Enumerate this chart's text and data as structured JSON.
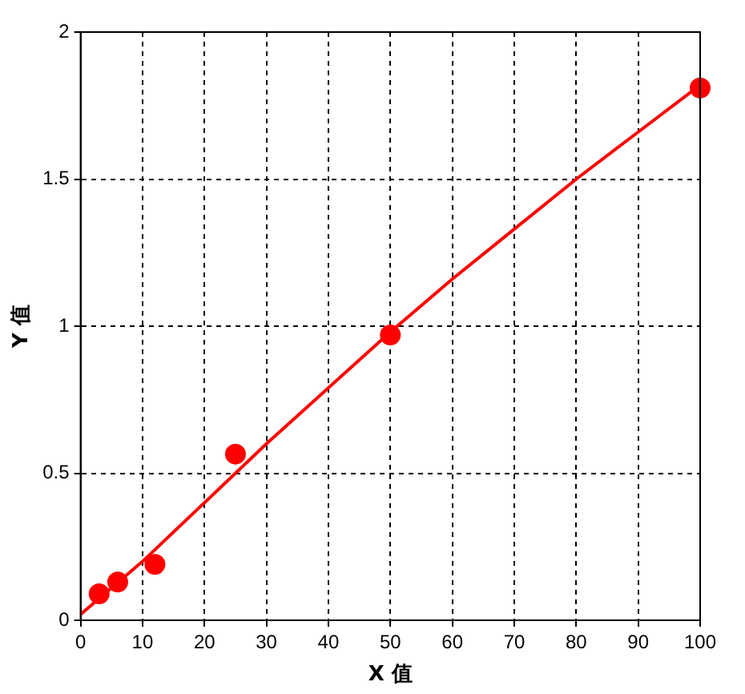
{
  "chart_data": {
    "type": "scatter",
    "xlabel": "X 值",
    "ylabel": "Y 值",
    "xlim": [
      0,
      100
    ],
    "ylim": [
      0,
      2
    ],
    "xticks": [
      0,
      10,
      20,
      30,
      40,
      50,
      60,
      70,
      80,
      90,
      100
    ],
    "yticks": [
      0,
      0.5,
      1,
      1.5,
      2
    ],
    "grid": true,
    "legend": false,
    "marker": "circle",
    "series": [
      {
        "color": "#ff0000",
        "x": [
          3,
          6,
          12,
          25,
          50,
          100
        ],
        "values": [
          0.09,
          0.13,
          0.19,
          0.565,
          0.97,
          1.81
        ]
      },
      {
        "type": "line",
        "color": "#ff0000",
        "marker": "none",
        "x": [
          0,
          10,
          20,
          30,
          40,
          50,
          60,
          70,
          80,
          90,
          100
        ],
        "values": [
          0.02,
          0.2,
          0.4,
          0.6,
          0.79,
          0.98,
          1.16,
          1.33,
          1.5,
          1.66,
          1.82
        ]
      }
    ]
  }
}
